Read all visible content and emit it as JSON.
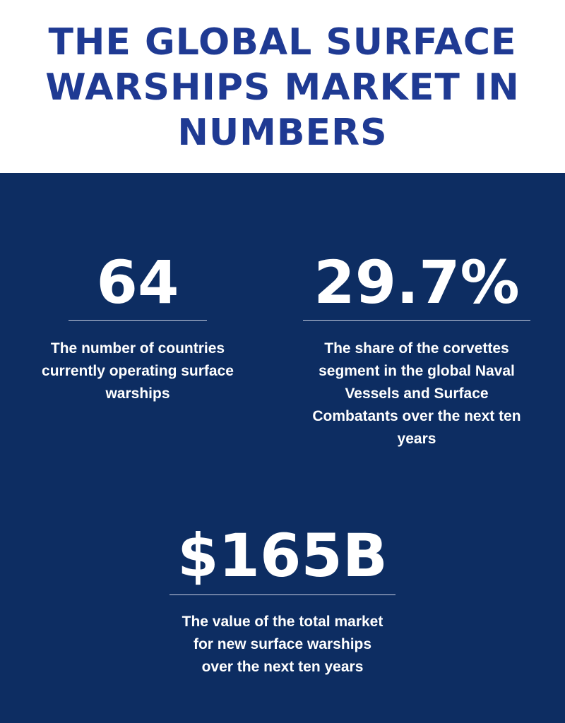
{
  "header": {
    "title": "THE GLOBAL SURFACE WARSHIPS MARKET IN NUMBERS"
  },
  "stats": [
    {
      "value": "64",
      "description": "The number of countries currently operating surface warships"
    },
    {
      "value": "29.7%",
      "description": "The share of the corvettes segment in the global Naval Vessels and Surface Combatants over the next ten years"
    },
    {
      "value": "$165B",
      "description": "The value of the total market for new surface warships over the next ten years"
    }
  ],
  "colors": {
    "title": "#1f3a93",
    "panel_background": "#0d2d62",
    "text": "#ffffff",
    "rule": "#c9d1e3"
  }
}
